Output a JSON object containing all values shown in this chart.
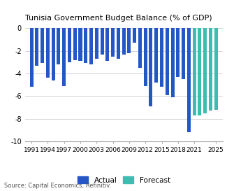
{
  "title": "Tunisia Government Budget Balance (% of GDP)",
  "source": "Source: Capital Economics, Refinitiv.",
  "ylim": [
    -10,
    0.3
  ],
  "yticks": [
    0,
    -2,
    -4,
    -6,
    -8,
    -10
  ],
  "actual_color": "#2457C5",
  "forecast_color": "#3DBDB0",
  "years": [
    1991,
    1992,
    1993,
    1994,
    1995,
    1996,
    1997,
    1998,
    1999,
    2000,
    2001,
    2002,
    2003,
    2004,
    2005,
    2006,
    2007,
    2008,
    2009,
    2010,
    2011,
    2012,
    2013,
    2014,
    2015,
    2016,
    2017,
    2018,
    2019,
    2020,
    2021,
    2022,
    2023,
    2024,
    2025
  ],
  "values": [
    -5.2,
    -3.3,
    -3.1,
    -4.4,
    -4.6,
    -3.2,
    -5.1,
    -3.0,
    -2.8,
    -2.9,
    -3.1,
    -3.2,
    -2.7,
    -2.3,
    -2.9,
    -2.5,
    -2.7,
    -2.3,
    -2.2,
    -1.3,
    -3.5,
    -5.1,
    -6.9,
    -4.8,
    -5.2,
    -5.9,
    -6.1,
    -4.3,
    -4.5,
    -9.2,
    -7.7,
    -7.7,
    -7.5,
    -7.3,
    -7.2
  ],
  "forecast_start_year": 2021,
  "xtick_labels": [
    "1991",
    "1994",
    "1997",
    "2000",
    "2003",
    "2006",
    "2009",
    "2012",
    "2015",
    "2018",
    "2021",
    "2025"
  ],
  "xtick_positions": [
    1991,
    1994,
    1997,
    2000,
    2003,
    2006,
    2009,
    2012,
    2015,
    2018,
    2021,
    2025
  ],
  "background_color": "#ffffff",
  "grid_color": "#cccccc",
  "bar_width": 0.65,
  "xlim_left": 1989.8,
  "xlim_right": 2026.2
}
